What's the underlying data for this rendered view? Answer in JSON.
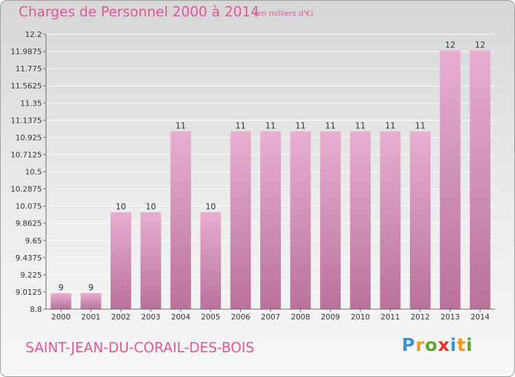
{
  "header": {
    "title": "Charges de Personnel 2000 à 2014",
    "unit": "(en milliers d'€)"
  },
  "footer": {
    "commune": "SAINT-JEAN-DU-CORAIL-DES-BOIS",
    "logo": "Proxiti"
  },
  "colors": {
    "accent": "#e1569a",
    "bar": "#d486b0",
    "logo_letters": [
      "#3f8fd3",
      "#f09a1c",
      "#5aa832",
      "#e8332a",
      "#3f8fd3",
      "#f09a1c",
      "#5aa832"
    ]
  },
  "chart_data": {
    "type": "bar",
    "title": "Charges de Personnel 2000 à 2014",
    "subtitle": "(en milliers d'€)",
    "xlabel": "",
    "ylabel": "",
    "categories": [
      "2000",
      "2001",
      "2002",
      "2003",
      "2004",
      "2005",
      "2006",
      "2007",
      "2008",
      "2009",
      "2010",
      "2011",
      "2012",
      "2013",
      "2014"
    ],
    "values": [
      9,
      9,
      10,
      10,
      11,
      10,
      11,
      11,
      11,
      11,
      11,
      11,
      11,
      12,
      12
    ],
    "data_labels": [
      "9",
      "9",
      "10",
      "10",
      "11",
      "10",
      "11",
      "11",
      "11",
      "11",
      "11",
      "11",
      "11",
      "12",
      "12"
    ],
    "ylim": [
      8.8,
      12.2
    ],
    "yticks": [
      "12.2",
      "11.9875",
      "11.775",
      "11.5625",
      "11.35",
      "11.1375",
      "10.925",
      "10.7125",
      "10.5",
      "10.2875",
      "10.075",
      "9.8625",
      "9.65",
      "9.4375",
      "9.225",
      "9.0125",
      "8.8"
    ],
    "grid": true,
    "legend": "none"
  }
}
